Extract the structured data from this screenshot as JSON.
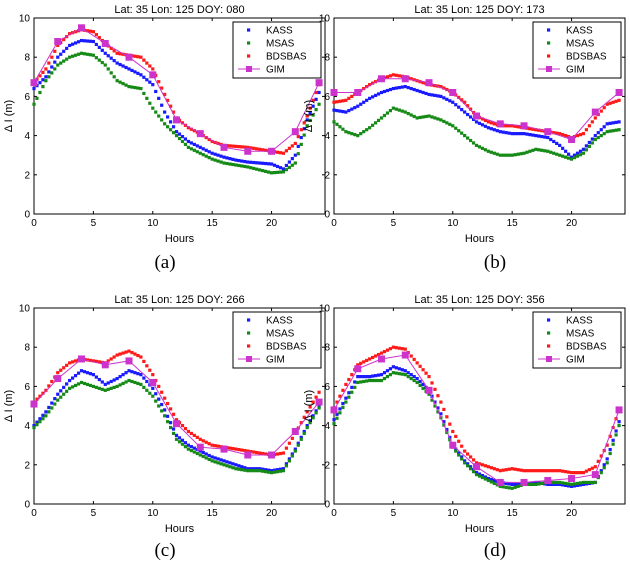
{
  "figure": {
    "xlabel": "Hours",
    "ylabel": "Δ I (m)"
  },
  "colors": {
    "KASS": "#1a1aff",
    "MSAS": "#168a16",
    "BDSBAS": "#ff1a1a",
    "GIM": "#cc33cc"
  },
  "chart_data": [
    {
      "type": "scatter",
      "title": "Lat: 35  Lon: 125  DOY: 080",
      "label": "(a)",
      "xlabel": "Hours",
      "ylabel": "Δ I (m)",
      "xlim": [
        0,
        24.5
      ],
      "ylim": [
        0,
        10
      ],
      "xticks": [
        0,
        5,
        10,
        15,
        20
      ],
      "yticks": [
        0,
        2,
        4,
        6,
        8,
        10
      ],
      "legend": "top-right",
      "grid": false,
      "x": [
        0,
        1,
        2,
        3,
        4,
        5,
        6,
        7,
        8,
        9,
        10,
        11,
        12,
        13,
        14,
        15,
        16,
        17,
        18,
        19,
        20,
        21,
        22,
        23,
        24
      ],
      "series": [
        {
          "name": "KASS",
          "marker": "dot",
          "values": [
            6.4,
            7.0,
            8.0,
            8.6,
            8.85,
            8.8,
            8.2,
            7.7,
            7.4,
            7.1,
            6.6,
            5.2,
            4.2,
            3.7,
            3.4,
            3.1,
            2.9,
            2.75,
            2.65,
            2.6,
            2.55,
            2.3,
            3.0,
            4.8,
            6.2
          ]
        },
        {
          "name": "MSAS",
          "marker": "dot",
          "values": [
            5.6,
            6.8,
            7.6,
            8.0,
            8.2,
            8.1,
            7.6,
            6.8,
            6.5,
            6.4,
            5.4,
            4.6,
            4.0,
            3.4,
            3.1,
            2.8,
            2.6,
            2.5,
            2.4,
            2.25,
            2.1,
            2.15,
            2.6,
            4.5,
            5.6
          ]
        },
        {
          "name": "BDSBAS",
          "marker": "dot",
          "values": [
            6.7,
            7.4,
            8.6,
            9.2,
            9.4,
            9.3,
            8.7,
            8.2,
            8.1,
            8.0,
            7.4,
            6.1,
            4.9,
            4.4,
            4.1,
            3.7,
            3.5,
            3.45,
            3.4,
            3.3,
            3.2,
            3.1,
            3.6,
            5.0,
            6.6
          ]
        },
        {
          "name": "GIM",
          "marker": "square",
          "x": [
            0,
            2,
            4,
            6,
            8,
            10,
            12,
            14,
            16,
            18,
            20,
            22,
            24
          ],
          "values": [
            6.7,
            8.8,
            9.5,
            8.7,
            8.0,
            7.1,
            4.8,
            4.1,
            3.4,
            3.2,
            3.2,
            4.2,
            6.7
          ]
        }
      ]
    },
    {
      "type": "scatter",
      "title": "Lat: 35  Lon: 125  DOY: 173",
      "label": "(b)",
      "xlabel": "Hours",
      "ylabel": "Δ I (m)",
      "xlim": [
        0,
        24.5
      ],
      "ylim": [
        0,
        10
      ],
      "xticks": [
        0,
        5,
        10,
        15,
        20
      ],
      "yticks": [
        0,
        2,
        4,
        6,
        8,
        10
      ],
      "legend": "top-right",
      "grid": false,
      "x": [
        0,
        1,
        2,
        3,
        4,
        5,
        6,
        7,
        8,
        9,
        10,
        11,
        12,
        13,
        14,
        15,
        16,
        17,
        18,
        19,
        20,
        21,
        22,
        23,
        24
      ],
      "series": [
        {
          "name": "KASS",
          "marker": "dot",
          "values": [
            5.3,
            5.2,
            5.5,
            5.9,
            6.2,
            6.4,
            6.5,
            6.3,
            6.1,
            6.0,
            5.7,
            5.2,
            4.7,
            4.4,
            4.2,
            4.1,
            4.1,
            4.0,
            3.9,
            3.5,
            2.9,
            3.3,
            4.0,
            4.6,
            4.7
          ]
        },
        {
          "name": "MSAS",
          "marker": "dot",
          "values": [
            4.7,
            4.2,
            4.0,
            4.4,
            4.9,
            5.4,
            5.2,
            4.9,
            5.0,
            4.8,
            4.5,
            4.0,
            3.5,
            3.2,
            3.0,
            3.0,
            3.1,
            3.3,
            3.2,
            3.0,
            2.8,
            3.1,
            3.8,
            4.2,
            4.3
          ]
        },
        {
          "name": "BDSBAS",
          "marker": "dot",
          "values": [
            5.7,
            5.8,
            6.2,
            6.6,
            6.9,
            7.1,
            7.0,
            6.8,
            6.6,
            6.5,
            6.2,
            5.7,
            5.0,
            4.7,
            4.5,
            4.5,
            4.4,
            4.3,
            4.2,
            4.1,
            3.9,
            4.1,
            4.9,
            5.6,
            5.8
          ]
        },
        {
          "name": "GIM",
          "marker": "square",
          "x": [
            0,
            2,
            4,
            6,
            8,
            10,
            12,
            14,
            16,
            18,
            20,
            22,
            24
          ],
          "values": [
            6.2,
            6.2,
            6.9,
            6.9,
            6.7,
            6.2,
            5.0,
            4.6,
            4.5,
            4.2,
            3.8,
            5.2,
            6.2
          ]
        }
      ]
    },
    {
      "type": "scatter",
      "title": "Lat: 35  Lon: 125  DOY: 266",
      "label": "(c)",
      "xlabel": "Hours",
      "ylabel": "Δ I (m)",
      "xlim": [
        0,
        24.5
      ],
      "ylim": [
        0,
        10
      ],
      "xticks": [
        0,
        5,
        10,
        15,
        20
      ],
      "yticks": [
        0,
        2,
        4,
        6,
        8,
        10
      ],
      "legend": "top-right",
      "grid": false,
      "x": [
        0,
        1,
        2,
        3,
        4,
        5,
        6,
        7,
        8,
        9,
        10,
        11,
        12,
        13,
        14,
        15,
        16,
        17,
        18,
        19,
        20,
        21,
        22,
        23,
        24
      ],
      "series": [
        {
          "name": "KASS",
          "marker": "dot",
          "values": [
            4.0,
            4.7,
            5.6,
            6.3,
            6.8,
            6.6,
            6.1,
            6.4,
            6.8,
            6.6,
            5.9,
            4.8,
            3.5,
            3.0,
            2.7,
            2.4,
            2.2,
            2.0,
            1.8,
            1.8,
            1.7,
            1.8,
            2.8,
            4.0,
            5.0
          ]
        },
        {
          "name": "MSAS",
          "marker": "dot",
          "values": [
            3.9,
            4.5,
            5.3,
            5.9,
            6.2,
            6.0,
            5.8,
            6.0,
            6.3,
            6.1,
            5.5,
            4.5,
            3.3,
            2.8,
            2.5,
            2.2,
            2.0,
            1.8,
            1.7,
            1.7,
            1.6,
            1.7,
            2.7,
            3.9,
            4.9
          ]
        },
        {
          "name": "BDSBAS",
          "marker": "dot",
          "values": [
            5.2,
            5.8,
            6.7,
            7.2,
            7.4,
            7.3,
            7.2,
            7.6,
            7.8,
            7.5,
            6.6,
            5.4,
            4.3,
            3.7,
            3.3,
            3.0,
            2.9,
            2.8,
            2.7,
            2.6,
            2.5,
            2.6,
            3.6,
            4.7,
            5.7
          ]
        },
        {
          "name": "GIM",
          "marker": "square",
          "x": [
            0,
            2,
            4,
            6,
            8,
            10,
            12,
            14,
            16,
            18,
            20,
            22,
            24
          ],
          "values": [
            5.1,
            6.4,
            7.4,
            7.1,
            7.3,
            6.2,
            4.1,
            2.9,
            2.8,
            2.5,
            2.5,
            3.7,
            5.2
          ]
        }
      ]
    },
    {
      "type": "scatter",
      "title": "Lat: 35  Lon: 125  DOY: 356",
      "label": "(d)",
      "xlabel": "Hours",
      "ylabel": "Δ I (m)",
      "xlim": [
        0,
        24.5
      ],
      "ylim": [
        0,
        10
      ],
      "xticks": [
        0,
        5,
        10,
        15,
        20
      ],
      "yticks": [
        0,
        2,
        4,
        6,
        8,
        10
      ],
      "legend": "top-right",
      "grid": false,
      "x": [
        0,
        1,
        2,
        3,
        4,
        5,
        6,
        7,
        8,
        9,
        10,
        11,
        12,
        13,
        14,
        15,
        16,
        17,
        18,
        19,
        20,
        21,
        22,
        23,
        24
      ],
      "series": [
        {
          "name": "KASS",
          "marker": "dot",
          "values": [
            4.3,
            5.4,
            6.5,
            6.5,
            6.6,
            7.0,
            6.8,
            6.4,
            5.8,
            4.6,
            3.0,
            2.2,
            1.6,
            1.3,
            1.1,
            1.0,
            1.0,
            1.1,
            1.0,
            1.0,
            0.9,
            1.0,
            1.1,
            2.3,
            4.2
          ]
        },
        {
          "name": "MSAS",
          "marker": "dot",
          "values": [
            4.1,
            5.2,
            6.2,
            6.3,
            6.3,
            6.7,
            6.6,
            6.2,
            5.6,
            4.4,
            2.9,
            2.1,
            1.5,
            1.2,
            0.9,
            0.8,
            1.0,
            1.0,
            1.1,
            1.1,
            1.0,
            1.1,
            1.1,
            2.1,
            4.0
          ]
        },
        {
          "name": "BDSBAS",
          "marker": "dot",
          "values": [
            4.9,
            6.1,
            7.1,
            7.4,
            7.7,
            8.0,
            7.9,
            7.2,
            6.5,
            5.2,
            3.7,
            2.7,
            2.1,
            1.9,
            1.7,
            1.8,
            1.7,
            1.7,
            1.7,
            1.7,
            1.6,
            1.6,
            1.9,
            3.0,
            4.8
          ]
        },
        {
          "name": "GIM",
          "marker": "square",
          "x": [
            0,
            2,
            4,
            6,
            8,
            10,
            12,
            14,
            16,
            18,
            20,
            22,
            24
          ],
          "values": [
            4.8,
            6.9,
            7.4,
            7.6,
            5.8,
            3.0,
            1.9,
            1.1,
            1.1,
            1.2,
            1.3,
            1.5,
            4.8
          ]
        }
      ]
    }
  ]
}
